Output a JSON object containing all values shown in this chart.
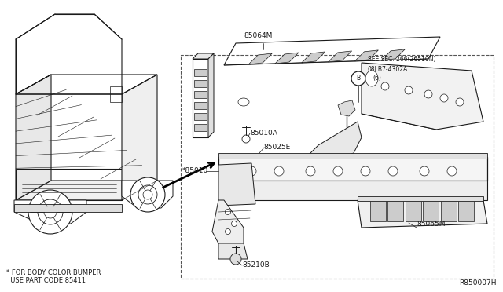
{
  "bg_color": "#ffffff",
  "line_color": "#1a1a1a",
  "text_color": "#1a1a1a",
  "diagram_id": "R850007H",
  "footnote1": "* FOR BODY COLOR BUMPER",
  "footnote2": "  USE PART CODE 85411",
  "star_85010_label": "*85010"
}
